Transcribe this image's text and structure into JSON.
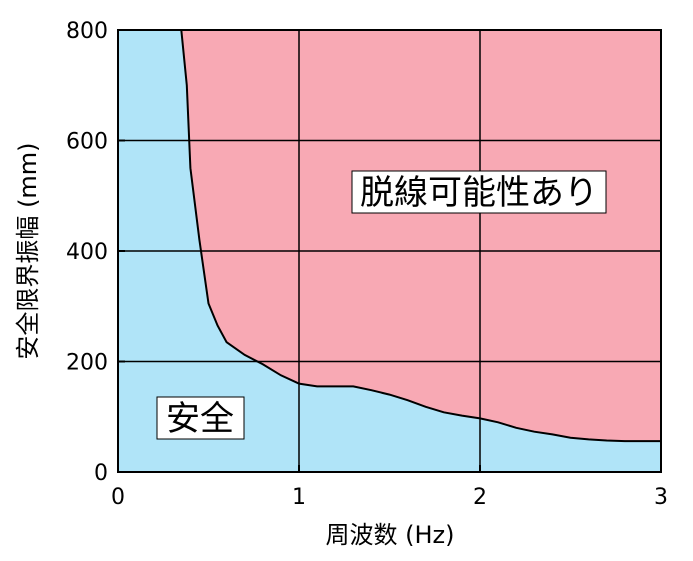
{
  "chart_data": {
    "type": "area",
    "xlabel": "周波数 (Hz)",
    "ylabel": "安全限界振幅 (mm)",
    "xlim": [
      0,
      3
    ],
    "ylim": [
      0,
      800
    ],
    "x_ticks": [
      0,
      1,
      2,
      3
    ],
    "y_ticks": [
      0,
      200,
      400,
      600,
      800
    ],
    "grid": true,
    "boundary": {
      "x": [
        0.35,
        0.38,
        0.4,
        0.45,
        0.5,
        0.55,
        0.6,
        0.7,
        0.8,
        0.9,
        1.0,
        1.1,
        1.2,
        1.3,
        1.4,
        1.5,
        1.6,
        1.7,
        1.8,
        1.9,
        2.0,
        2.1,
        2.2,
        2.3,
        2.4,
        2.5,
        2.6,
        2.7,
        2.8,
        2.9,
        3.0
      ],
      "y": [
        800,
        700,
        550,
        420,
        305,
        265,
        235,
        212,
        195,
        175,
        160,
        155,
        155,
        155,
        148,
        140,
        130,
        118,
        108,
        102,
        97,
        90,
        80,
        73,
        68,
        62,
        59,
        57,
        56,
        56,
        56
      ]
    },
    "regions": {
      "safe": {
        "label": "安全",
        "color": "#b0e4f8"
      },
      "derail": {
        "label": "脱線可能性あり",
        "color": "#f8a9b4"
      }
    }
  }
}
